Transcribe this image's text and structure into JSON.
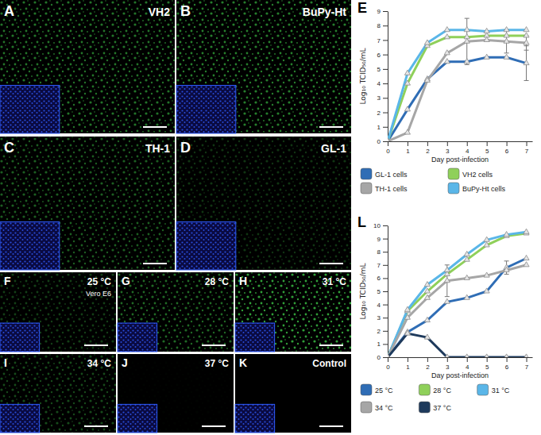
{
  "images": [
    {
      "letter": "A",
      "label": "VH2"
    },
    {
      "letter": "B",
      "label": "BuPy-Ht"
    },
    {
      "letter": "C",
      "label": "TH-1"
    },
    {
      "letter": "D",
      "label": "GL-1"
    },
    {
      "letter": "F",
      "label": "25 °C",
      "sublabel": "Vero E6"
    },
    {
      "letter": "G",
      "label": "28 °C"
    },
    {
      "letter": "H",
      "label": "31 °C"
    },
    {
      "letter": "I",
      "label": "34 °C"
    },
    {
      "letter": "J",
      "label": "37 °C"
    },
    {
      "letter": "K",
      "label": "Control"
    }
  ],
  "chart_data": [
    {
      "type": "line",
      "letter": "E",
      "x_label": "Day post-infection",
      "y_label": "Log₁₀ TCID₅₀/mL",
      "x": [
        0,
        1,
        2,
        3,
        4,
        5,
        6,
        7
      ],
      "xlim": [
        0,
        7.3
      ],
      "xticks": [
        0,
        1,
        2,
        3,
        4,
        5,
        6,
        7
      ],
      "ylim": [
        0,
        9
      ],
      "yticks": [
        0,
        1,
        2,
        3,
        4,
        5,
        6,
        7,
        8,
        9
      ],
      "marker": "triangle",
      "legend": "bottom",
      "series": [
        {
          "name": "GL-1 cells",
          "color": "#2f6db5",
          "values": [
            0,
            2.2,
            4.3,
            5.5,
            5.5,
            5.8,
            5.8,
            5.4
          ],
          "errors": [
            null,
            null,
            null,
            null,
            null,
            null,
            null,
            1.2
          ]
        },
        {
          "name": "VH2 cells",
          "color": "#8fd05a",
          "values": [
            0,
            4.0,
            6.6,
            7.2,
            7.2,
            7.3,
            7.3,
            7.3
          ],
          "errors": [
            null,
            null,
            null,
            null,
            null,
            null,
            null,
            null
          ]
        },
        {
          "name": "TH-1 cells",
          "color": "#a6a6a6",
          "values": [
            0,
            0.6,
            4.2,
            6.1,
            6.9,
            7.0,
            6.9,
            6.8
          ],
          "errors": [
            null,
            null,
            null,
            null,
            1.6,
            null,
            0.8,
            0.5
          ]
        },
        {
          "name": "BuPy-Ht cells",
          "color": "#5ab6e8",
          "values": [
            0,
            4.7,
            6.8,
            7.7,
            7.7,
            7.6,
            7.7,
            7.7
          ],
          "errors": [
            null,
            null,
            null,
            null,
            null,
            null,
            null,
            null
          ]
        }
      ]
    },
    {
      "type": "line",
      "letter": "L",
      "x_label": "Day post-infection",
      "y_label": "Log₁₀ TCID₅₀/mL",
      "x": [
        0,
        1,
        2,
        3,
        4,
        5,
        6,
        7
      ],
      "xlim": [
        0,
        7.3
      ],
      "xticks": [
        0,
        1,
        2,
        3,
        4,
        5,
        6,
        7
      ],
      "ylim": [
        0,
        10
      ],
      "yticks": [
        0,
        1,
        2,
        3,
        4,
        5,
        6,
        7,
        8,
        9,
        10
      ],
      "marker": "triangle",
      "legend": "bottom",
      "series": [
        {
          "name": "25 °C",
          "color": "#2f6db5",
          "values": [
            0,
            1.9,
            2.8,
            4.2,
            4.5,
            5.0,
            6.8,
            7.5
          ],
          "errors": [
            null,
            null,
            null,
            null,
            null,
            null,
            0.5,
            null
          ]
        },
        {
          "name": "28 °C",
          "color": "#8fd05a",
          "values": [
            0,
            3.5,
            5.0,
            6.3,
            7.4,
            8.5,
            9.2,
            9.4
          ],
          "errors": [
            null,
            null,
            null,
            null,
            null,
            null,
            null,
            null
          ]
        },
        {
          "name": "31 °C",
          "color": "#5ab6e8",
          "values": [
            0,
            3.6,
            5.5,
            6.6,
            7.8,
            8.9,
            9.3,
            9.5
          ],
          "errors": [
            null,
            null,
            null,
            null,
            null,
            null,
            null,
            null
          ]
        },
        {
          "name": "34 °C",
          "color": "#a6a6a6",
          "values": [
            0,
            3.0,
            4.5,
            5.8,
            6.0,
            6.2,
            6.6,
            7.0
          ],
          "errors": [
            null,
            null,
            null,
            1.2,
            null,
            null,
            null,
            null
          ]
        },
        {
          "name": "37 °C",
          "color": "#1e3a5c",
          "values": [
            0,
            1.8,
            1.5,
            0,
            0,
            0,
            0,
            0
          ],
          "errors": [
            null,
            null,
            null,
            null,
            null,
            null,
            null,
            null
          ]
        }
      ]
    }
  ]
}
